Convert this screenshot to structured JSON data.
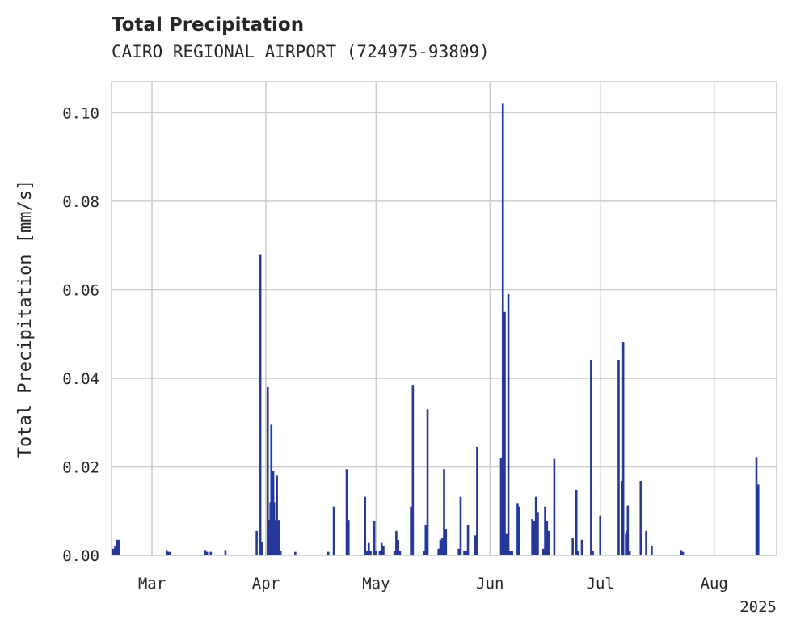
{
  "title": "Total Precipitation",
  "subtitle": "CAIRO REGIONAL AIRPORT (724975-93809)",
  "chart_data": {
    "type": "bar",
    "title": "Total Precipitation",
    "subtitle": "CAIRO REGIONAL AIRPORT (724975-93809)",
    "xlabel": "",
    "ylabel": "Total Precipitation [mm/s]",
    "x_ticks": [
      "Mar",
      "Apr",
      "May",
      "Jun",
      "Jul",
      "Aug"
    ],
    "x_tick_dates": [
      "2025-03-01",
      "2025-04-01",
      "2025-05-01",
      "2025-06-01",
      "2025-07-01",
      "2025-08-01"
    ],
    "x_offset_label": "2025",
    "xlim": [
      "2025-02-18",
      "2025-08-18"
    ],
    "y_ticks": [
      "0.00",
      "0.02",
      "0.04",
      "0.06",
      "0.08",
      "0.10"
    ],
    "ylim": [
      0,
      0.107
    ],
    "grid": true,
    "bar_color": "#27379a",
    "series": [
      {
        "points": [
          [
            "2025-02-18T12:00",
            0.0015
          ],
          [
            "2025-02-19T00:00",
            0.002
          ],
          [
            "2025-02-19T12:00",
            0.0035
          ],
          [
            "2025-02-20T00:00",
            0.0035
          ],
          [
            "2025-03-05T00:00",
            0.0012
          ],
          [
            "2025-03-05T12:00",
            0.0008
          ],
          [
            "2025-03-06T00:00",
            0.0008
          ],
          [
            "2025-03-15T12:00",
            0.0012
          ],
          [
            "2025-03-16T00:00",
            0.0008
          ],
          [
            "2025-03-17T00:00",
            0.0008
          ],
          [
            "2025-03-21T00:00",
            0.0012
          ],
          [
            "2025-03-29T12:00",
            0.0055
          ],
          [
            "2025-03-30T12:00",
            0.068
          ],
          [
            "2025-03-31T00:00",
            0.003
          ],
          [
            "2025-04-01T12:00",
            0.038
          ],
          [
            "2025-04-02T00:00",
            0.008
          ],
          [
            "2025-04-02T06:00",
            0.012
          ],
          [
            "2025-04-02T12:00",
            0.0295
          ],
          [
            "2025-04-03T00:00",
            0.019
          ],
          [
            "2025-04-03T06:00",
            0.012
          ],
          [
            "2025-04-03T12:00",
            0.008
          ],
          [
            "2025-04-04T00:00",
            0.018
          ],
          [
            "2025-04-04T12:00",
            0.008
          ],
          [
            "2025-04-05T00:00",
            0.001
          ],
          [
            "2025-04-09T00:00",
            0.0008
          ],
          [
            "2025-04-18T00:00",
            0.0008
          ],
          [
            "2025-04-19T12:00",
            0.011
          ],
          [
            "2025-04-23T00:00",
            0.0195
          ],
          [
            "2025-04-23T12:00",
            0.008
          ],
          [
            "2025-04-28T00:00",
            0.0132
          ],
          [
            "2025-04-28T12:00",
            0.001
          ],
          [
            "2025-04-29T00:00",
            0.0028
          ],
          [
            "2025-04-29T12:00",
            0.001
          ],
          [
            "2025-04-30T12:00",
            0.0078
          ],
          [
            "2025-05-01T00:00",
            0.001
          ],
          [
            "2025-05-02T00:00",
            0.001
          ],
          [
            "2025-05-02T12:00",
            0.0028
          ],
          [
            "2025-05-03T00:00",
            0.0022
          ],
          [
            "2025-05-06T00:00",
            0.001
          ],
          [
            "2025-05-06T12:00",
            0.0055
          ],
          [
            "2025-05-07T00:00",
            0.0035
          ],
          [
            "2025-05-07T12:00",
            0.001
          ],
          [
            "2025-05-10T12:00",
            0.011
          ],
          [
            "2025-05-11T00:00",
            0.0385
          ],
          [
            "2025-05-14T00:00",
            0.001
          ],
          [
            "2025-05-14T12:00",
            0.0068
          ],
          [
            "2025-05-15T00:00",
            0.033
          ],
          [
            "2025-05-18T00:00",
            0.0015
          ],
          [
            "2025-05-18T12:00",
            0.0035
          ],
          [
            "2025-05-19T00:00",
            0.004
          ],
          [
            "2025-05-19T12:00",
            0.0195
          ],
          [
            "2025-05-20T00:00",
            0.006
          ],
          [
            "2025-05-23T12:00",
            0.0015
          ],
          [
            "2025-05-24T00:00",
            0.0132
          ],
          [
            "2025-05-25T00:00",
            0.001
          ],
          [
            "2025-05-25T12:00",
            0.001
          ],
          [
            "2025-05-26T00:00",
            0.0068
          ],
          [
            "2025-05-28T00:00",
            0.0045
          ],
          [
            "2025-05-28T12:00",
            0.0245
          ],
          [
            "2025-06-04T00:00",
            0.022
          ],
          [
            "2025-06-04T12:00",
            0.102
          ],
          [
            "2025-06-05T00:00",
            0.055
          ],
          [
            "2025-06-05T12:00",
            0.005
          ],
          [
            "2025-06-06T00:00",
            0.059
          ],
          [
            "2025-06-06T12:00",
            0.001
          ],
          [
            "2025-06-07T00:00",
            0.001
          ],
          [
            "2025-06-08T12:00",
            0.0118
          ],
          [
            "2025-06-09T00:00",
            0.011
          ],
          [
            "2025-06-12T12:00",
            0.0082
          ],
          [
            "2025-06-13T00:00",
            0.0078
          ],
          [
            "2025-06-13T12:00",
            0.0132
          ],
          [
            "2025-06-14T00:00",
            0.0098
          ],
          [
            "2025-06-15T12:00",
            0.0015
          ],
          [
            "2025-06-16T00:00",
            0.011
          ],
          [
            "2025-06-16T12:00",
            0.0078
          ],
          [
            "2025-06-17T00:00",
            0.0055
          ],
          [
            "2025-06-18T12:00",
            0.0218
          ],
          [
            "2025-06-23T12:00",
            0.004
          ],
          [
            "2025-06-24T12:00",
            0.0148
          ],
          [
            "2025-06-25T00:00",
            0.001
          ],
          [
            "2025-06-26T00:00",
            0.0035
          ],
          [
            "2025-06-28T12:00",
            0.0442
          ],
          [
            "2025-06-29T00:00",
            0.001
          ],
          [
            "2025-07-01T00:00",
            0.009
          ],
          [
            "2025-07-06T00:00",
            0.0442
          ],
          [
            "2025-07-07T00:00",
            0.0168
          ],
          [
            "2025-07-07T06:00",
            0.0482
          ],
          [
            "2025-07-08T00:00",
            0.005
          ],
          [
            "2025-07-08T06:00",
            0.0055
          ],
          [
            "2025-07-08T12:00",
            0.0112
          ],
          [
            "2025-07-09T00:00",
            0.001
          ],
          [
            "2025-07-12T00:00",
            0.0168
          ],
          [
            "2025-07-13T12:00",
            0.0055
          ],
          [
            "2025-07-15T00:00",
            0.0022
          ],
          [
            "2025-07-23T00:00",
            0.0012
          ],
          [
            "2025-07-23T12:00",
            0.0008
          ],
          [
            "2025-08-12T12:00",
            0.0222
          ],
          [
            "2025-08-13T00:00",
            0.016
          ]
        ]
      }
    ]
  }
}
